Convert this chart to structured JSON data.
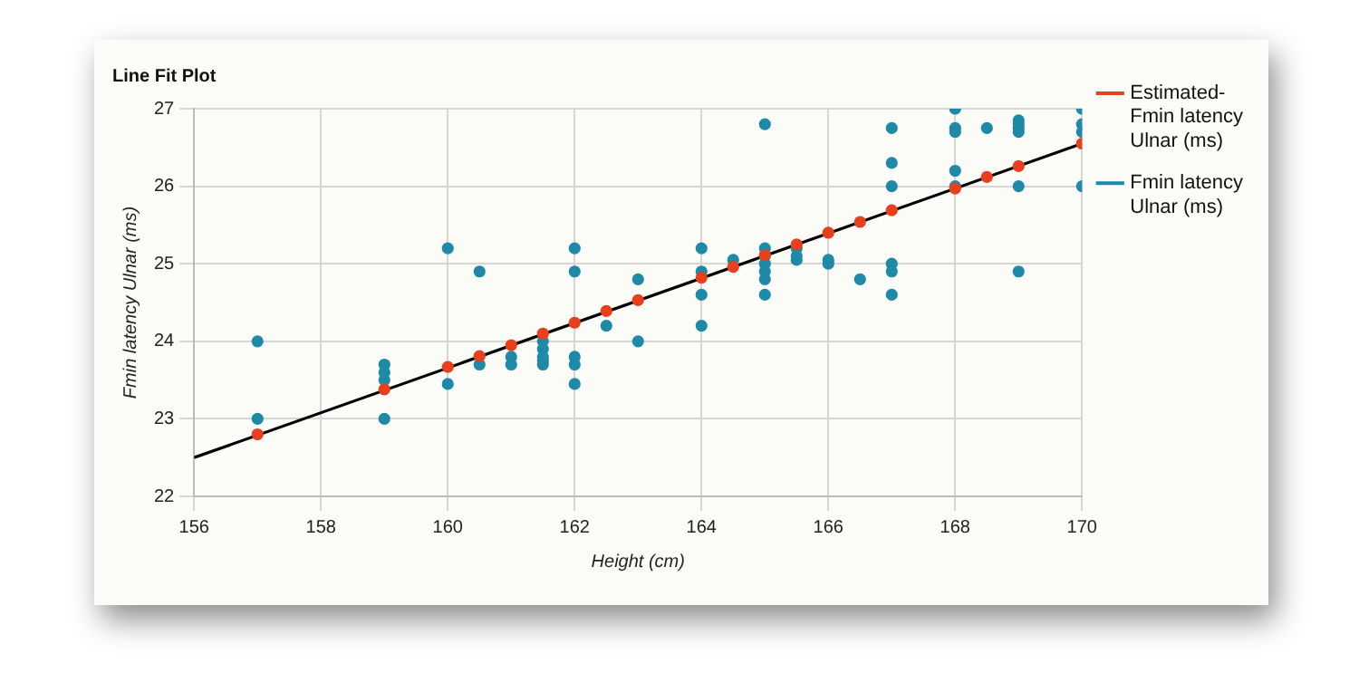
{
  "chart_data": {
    "type": "scatter",
    "title": "Line Fit Plot",
    "xlabel": "Height (cm)",
    "ylabel": "Fmin latency Ulnar (ms)",
    "xlim": [
      156,
      170
    ],
    "xticks": [
      156,
      158,
      160,
      162,
      164,
      166,
      168,
      170
    ],
    "ylim": [
      22,
      27
    ],
    "yticks": [
      22,
      23,
      24,
      25,
      26,
      27
    ],
    "grid": true,
    "legend": "right",
    "marker": "circle",
    "series": [
      {
        "name": "Estimated-Fmin latency Ulnar (ms)",
        "color": "#e8401c",
        "x": [
          157,
          159,
          160,
          160.5,
          161,
          161.5,
          162,
          162.5,
          163,
          164,
          164.5,
          165,
          165.5,
          166,
          166.5,
          167,
          168,
          168.5,
          169,
          170
        ],
        "values": [
          22.8,
          23.38,
          23.67,
          23.81,
          23.95,
          24.1,
          24.24,
          24.39,
          24.53,
          24.82,
          24.96,
          25.11,
          25.25,
          25.4,
          25.54,
          25.69,
          25.97,
          26.12,
          26.26,
          26.55
        ]
      },
      {
        "name": "Fmin latency Ulnar (ms)",
        "color": "#1e8aa8",
        "x": [
          157,
          157,
          159,
          159,
          159,
          159,
          160,
          160,
          160.5,
          160.5,
          161,
          161,
          161.5,
          161.5,
          161.5,
          161.5,
          161.5,
          162,
          162,
          162,
          162,
          162,
          162.5,
          163,
          163,
          164,
          164,
          164,
          164,
          164.5,
          165,
          165,
          165,
          165,
          165,
          165,
          165,
          165.5,
          165.5,
          165.5,
          166,
          166,
          166.5,
          167,
          167,
          167,
          167,
          167,
          167,
          168,
          168,
          168,
          168,
          168,
          168.5,
          169,
          169,
          169,
          169,
          169,
          169,
          170,
          170,
          170,
          170
        ],
        "values": [
          24,
          23,
          23.7,
          23.6,
          23.5,
          23,
          25.2,
          23.45,
          24.9,
          23.7,
          23.8,
          23.7,
          24,
          23.9,
          23.8,
          23.75,
          23.7,
          25.2,
          24.9,
          23.8,
          23.7,
          23.45,
          24.2,
          24.8,
          24,
          25.2,
          24.9,
          24.6,
          24.2,
          25.05,
          26.8,
          25.2,
          25.1,
          25,
          24.9,
          24.8,
          24.6,
          25.2,
          25.1,
          25.05,
          25.05,
          25,
          24.8,
          26.75,
          26.3,
          26,
          25,
          24.9,
          24.6,
          27,
          26.75,
          26.7,
          26.2,
          26,
          26.75,
          26.85,
          26.8,
          26.75,
          26.7,
          26,
          24.9,
          27,
          26.8,
          26.7,
          26
        ]
      },
      {
        "type": "line",
        "marker": "none",
        "color": "#000000",
        "x": [
          156,
          170
        ],
        "values": [
          22.5,
          26.55
        ]
      }
    ]
  }
}
